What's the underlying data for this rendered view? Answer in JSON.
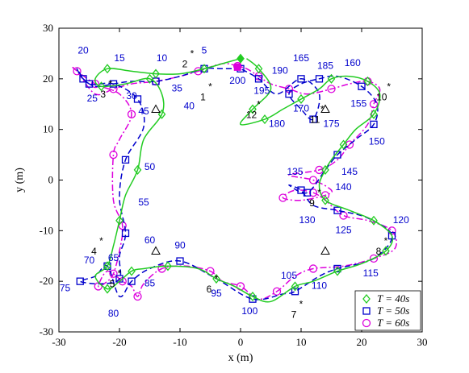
{
  "chart_data": {
    "type": "scatter",
    "xlabel": "x (m)",
    "ylabel": "y (m)",
    "xlim": [
      -30,
      30
    ],
    "ylim": [
      -30,
      30
    ],
    "xticks": [
      "-30",
      "-20",
      "-10",
      "0",
      "10",
      "20",
      "30"
    ],
    "yticks": [
      "-30",
      "-20",
      "-10",
      "0",
      "10",
      "20",
      "30"
    ],
    "grid": false,
    "legend_position": "bottom-right",
    "colors": {
      "T40": "#22cc22",
      "T50": "#0000cc",
      "T60": "#dd00dd",
      "waypoint": "#000000"
    },
    "series": [
      {
        "name": "T = 40s",
        "style": "solid",
        "marker": "diamond",
        "points": [
          [
            0,
            24
          ],
          [
            -3,
            23
          ],
          [
            -6,
            22
          ],
          [
            -10,
            21
          ],
          [
            -14,
            21
          ],
          [
            -18,
            21.5
          ],
          [
            -22,
            22
          ],
          [
            -24,
            20
          ],
          [
            -23,
            18.5
          ],
          [
            -19,
            19
          ],
          [
            -15,
            20
          ],
          [
            -13,
            17
          ],
          [
            -13,
            13
          ],
          [
            -16,
            8
          ],
          [
            -17,
            2
          ],
          [
            -19,
            -3
          ],
          [
            -20,
            -8
          ],
          [
            -21,
            -13
          ],
          [
            -22,
            -17
          ],
          [
            -24,
            -19
          ],
          [
            -22,
            -21.5
          ],
          [
            -20,
            -20
          ],
          [
            -18,
            -18
          ],
          [
            -16,
            -17.5
          ],
          [
            -12,
            -17
          ],
          [
            -7,
            -17.5
          ],
          [
            -4,
            -19.5
          ],
          [
            -1,
            -21
          ],
          [
            2,
            -23
          ],
          [
            5,
            -24
          ],
          [
            9,
            -21
          ],
          [
            12,
            -20
          ],
          [
            16,
            -18
          ],
          [
            20,
            -16.5
          ],
          [
            24,
            -14
          ],
          [
            25,
            -11
          ],
          [
            22,
            -8
          ],
          [
            18,
            -6
          ],
          [
            14,
            -4
          ],
          [
            13,
            -1
          ],
          [
            14,
            2
          ],
          [
            15,
            4
          ],
          [
            17,
            7
          ],
          [
            19,
            10
          ],
          [
            22,
            13
          ],
          [
            23,
            17
          ],
          [
            21,
            19.5
          ],
          [
            18,
            20.5
          ],
          [
            15,
            20
          ],
          [
            13,
            18
          ],
          [
            10,
            16
          ],
          [
            7,
            14
          ],
          [
            4,
            12
          ],
          [
            0,
            11
          ],
          [
            2,
            14
          ],
          [
            5,
            18
          ],
          [
            3,
            22
          ],
          [
            1,
            24
          ]
        ]
      },
      {
        "name": "T = 50s",
        "style": "dashed",
        "marker": "square",
        "points": [
          [
            0,
            22
          ],
          [
            -3,
            22
          ],
          [
            -6,
            22
          ],
          [
            -10,
            20.5
          ],
          [
            -14,
            19.5
          ],
          [
            -18,
            19.5
          ],
          [
            -21,
            19
          ],
          [
            -24,
            18.5
          ],
          [
            -26,
            20
          ],
          [
            -27,
            22
          ],
          [
            -25,
            19
          ],
          [
            -21,
            19
          ],
          [
            -17,
            16
          ],
          [
            -16,
            10.5
          ],
          [
            -19,
            4
          ],
          [
            -20,
            -3.5
          ],
          [
            -19,
            -10.5
          ],
          [
            -20,
            -15
          ],
          [
            -20,
            -19.5
          ],
          [
            -23,
            -20.5
          ],
          [
            -26.5,
            -20
          ],
          [
            -24,
            -19
          ],
          [
            -22,
            -17
          ],
          [
            -20,
            -23
          ],
          [
            -18,
            -20
          ],
          [
            -15,
            -17.5
          ],
          [
            -10,
            -16
          ],
          [
            -4,
            -19.5
          ],
          [
            2,
            -23.5
          ],
          [
            7,
            -22.5
          ],
          [
            9,
            -22
          ],
          [
            13,
            -19
          ],
          [
            16,
            -17.5
          ],
          [
            22,
            -15.5
          ],
          [
            25,
            -11
          ],
          [
            21,
            -7.5
          ],
          [
            16,
            -6
          ],
          [
            12,
            -5
          ],
          [
            10,
            -2
          ],
          [
            8,
            -1
          ],
          [
            11,
            -2.5
          ],
          [
            14,
            2
          ],
          [
            16,
            5
          ],
          [
            19,
            8
          ],
          [
            22,
            11
          ],
          [
            22.5,
            15
          ],
          [
            20,
            18.5
          ],
          [
            16,
            20.5
          ],
          [
            13,
            20
          ],
          [
            10,
            19
          ],
          [
            8,
            17
          ],
          [
            10,
            14
          ],
          [
            12,
            12
          ],
          [
            13,
            17
          ],
          [
            10,
            20
          ],
          [
            6,
            17
          ],
          [
            3,
            20
          ],
          [
            0,
            22
          ]
        ]
      },
      {
        "name": "T = 60s",
        "style": "dashdot",
        "marker": "circle",
        "points": [
          [
            -0.5,
            22.5
          ],
          [
            -3,
            23
          ],
          [
            -7,
            21.5
          ],
          [
            -10,
            20.5
          ],
          [
            -14,
            19.5
          ],
          [
            -18,
            19
          ],
          [
            -21,
            18
          ],
          [
            -24,
            17
          ],
          [
            -27,
            21.5
          ],
          [
            -27.5,
            22
          ],
          [
            -24,
            19
          ],
          [
            -20,
            17
          ],
          [
            -18,
            13
          ],
          [
            -20,
            8
          ],
          [
            -21,
            5
          ],
          [
            -21,
            -4
          ],
          [
            -19.5,
            -9
          ],
          [
            -20,
            -14
          ],
          [
            -21,
            -18.5
          ],
          [
            -22,
            -20
          ],
          [
            -23.5,
            -21
          ],
          [
            -22,
            -18
          ],
          [
            -19.5,
            -20
          ],
          [
            -18,
            -21
          ],
          [
            -17,
            -23
          ],
          [
            -16,
            -20.5
          ],
          [
            -13,
            -17.5
          ],
          [
            -9,
            -17
          ],
          [
            -5,
            -18
          ],
          [
            -3,
            -20
          ],
          [
            0,
            -21
          ],
          [
            3,
            -23.5
          ],
          [
            6,
            -22
          ],
          [
            9,
            -19
          ],
          [
            12,
            -17.5
          ],
          [
            17,
            -17
          ],
          [
            22,
            -15.5
          ],
          [
            25.5,
            -13.5
          ],
          [
            25,
            -10
          ],
          [
            21,
            -8
          ],
          [
            17,
            -7
          ],
          [
            14,
            -4
          ],
          [
            12,
            -2.5
          ],
          [
            9,
            -2
          ],
          [
            7,
            -3.5
          ],
          [
            10,
            -4
          ],
          [
            14,
            -3
          ],
          [
            15,
            -2
          ],
          [
            12,
            0
          ],
          [
            8,
            1
          ],
          [
            13,
            2
          ],
          [
            16,
            4
          ],
          [
            18,
            7
          ],
          [
            21,
            11
          ],
          [
            22,
            15
          ],
          [
            23,
            18
          ],
          [
            21,
            19.5
          ],
          [
            18,
            19
          ],
          [
            15,
            18
          ],
          [
            11,
            17
          ],
          [
            8,
            18
          ],
          [
            5,
            19
          ],
          [
            3,
            20.5
          ],
          [
            1,
            22
          ],
          [
            -0.5,
            22.5
          ]
        ]
      }
    ],
    "waypoints": [
      {
        "id": "1",
        "x": -5,
        "y": 18.5
      },
      {
        "id": "2",
        "x": -8,
        "y": 25
      },
      {
        "id": "3",
        "x": -21.5,
        "y": 19
      },
      {
        "id": "4",
        "x": -23,
        "y": -12
      },
      {
        "id": "5",
        "x": -20,
        "y": -18.5
      },
      {
        "id": "6",
        "x": -4,
        "y": -19.5
      },
      {
        "id": "7",
        "x": 10,
        "y": -24.5
      },
      {
        "id": "8",
        "x": 24,
        "y": -12
      },
      {
        "id": "9",
        "x": 13,
        "y": -2.5
      },
      {
        "id": "10",
        "x": 24.5,
        "y": 18.5
      },
      {
        "id": "11",
        "x": 13.5,
        "y": 14
      },
      {
        "id": "12",
        "x": 3,
        "y": 15
      }
    ],
    "triangles": [
      [
        -14,
        14
      ],
      [
        -14,
        -14
      ],
      [
        14,
        -14
      ],
      [
        14,
        14
      ]
    ],
    "start_markers": [
      [
        0,
        24
      ],
      [
        -0.5,
        22.3
      ]
    ],
    "time_labels": [
      {
        "text": "5",
        "x": -6,
        "y": 25
      },
      {
        "text": "10",
        "x": -13,
        "y": 23.5
      },
      {
        "text": "15",
        "x": -20,
        "y": 23.5
      },
      {
        "text": "20",
        "x": -26,
        "y": 25
      },
      {
        "text": "25",
        "x": -24.5,
        "y": 15.5
      },
      {
        "text": "30",
        "x": -18,
        "y": 16
      },
      {
        "text": "35",
        "x": -10.5,
        "y": 17.5
      },
      {
        "text": "40",
        "x": -8.5,
        "y": 14
      },
      {
        "text": "45",
        "x": -16,
        "y": 13
      },
      {
        "text": "50",
        "x": -15,
        "y": 2
      },
      {
        "text": "55",
        "x": -16,
        "y": -5
      },
      {
        "text": "60",
        "x": -15,
        "y": -12.5
      },
      {
        "text": "65",
        "x": -21,
        "y": -16
      },
      {
        "text": "70",
        "x": -25,
        "y": -16.5
      },
      {
        "text": "75",
        "x": -29,
        "y": -22
      },
      {
        "text": "80",
        "x": -21,
        "y": -27
      },
      {
        "text": "85",
        "x": -15,
        "y": -21
      },
      {
        "text": "90",
        "x": -10,
        "y": -13.5
      },
      {
        "text": "95",
        "x": -4,
        "y": -23
      },
      {
        "text": "100",
        "x": 1.5,
        "y": -26.5
      },
      {
        "text": "105",
        "x": 8,
        "y": -19.5
      },
      {
        "text": "110",
        "x": 13,
        "y": -21.5
      },
      {
        "text": "115",
        "x": 21.5,
        "y": -19
      },
      {
        "text": "120",
        "x": 26.5,
        "y": -8.5
      },
      {
        "text": "125",
        "x": 17,
        "y": -10.5
      },
      {
        "text": "130",
        "x": 11,
        "y": -8.5
      },
      {
        "text": "135",
        "x": 9,
        "y": 1
      },
      {
        "text": "140",
        "x": 17,
        "y": -2
      },
      {
        "text": "145",
        "x": 18,
        "y": 1
      },
      {
        "text": "150",
        "x": 22.5,
        "y": 7
      },
      {
        "text": "155",
        "x": 19.5,
        "y": 14.5
      },
      {
        "text": "160",
        "x": 18.5,
        "y": 22.5
      },
      {
        "text": "165",
        "x": 10,
        "y": 23.5
      },
      {
        "text": "170",
        "x": 10,
        "y": 13.5
      },
      {
        "text": "175",
        "x": 15,
        "y": 10.5
      },
      {
        "text": "180",
        "x": 6,
        "y": 10.5
      },
      {
        "text": "185",
        "x": 14,
        "y": 22
      },
      {
        "text": "190",
        "x": 6.5,
        "y": 21
      },
      {
        "text": "195",
        "x": 3.5,
        "y": 17
      },
      {
        "text": "200",
        "x": -0.5,
        "y": 19
      }
    ],
    "legend": [
      "T = 40s",
      "T = 50s",
      "T = 60s"
    ]
  }
}
